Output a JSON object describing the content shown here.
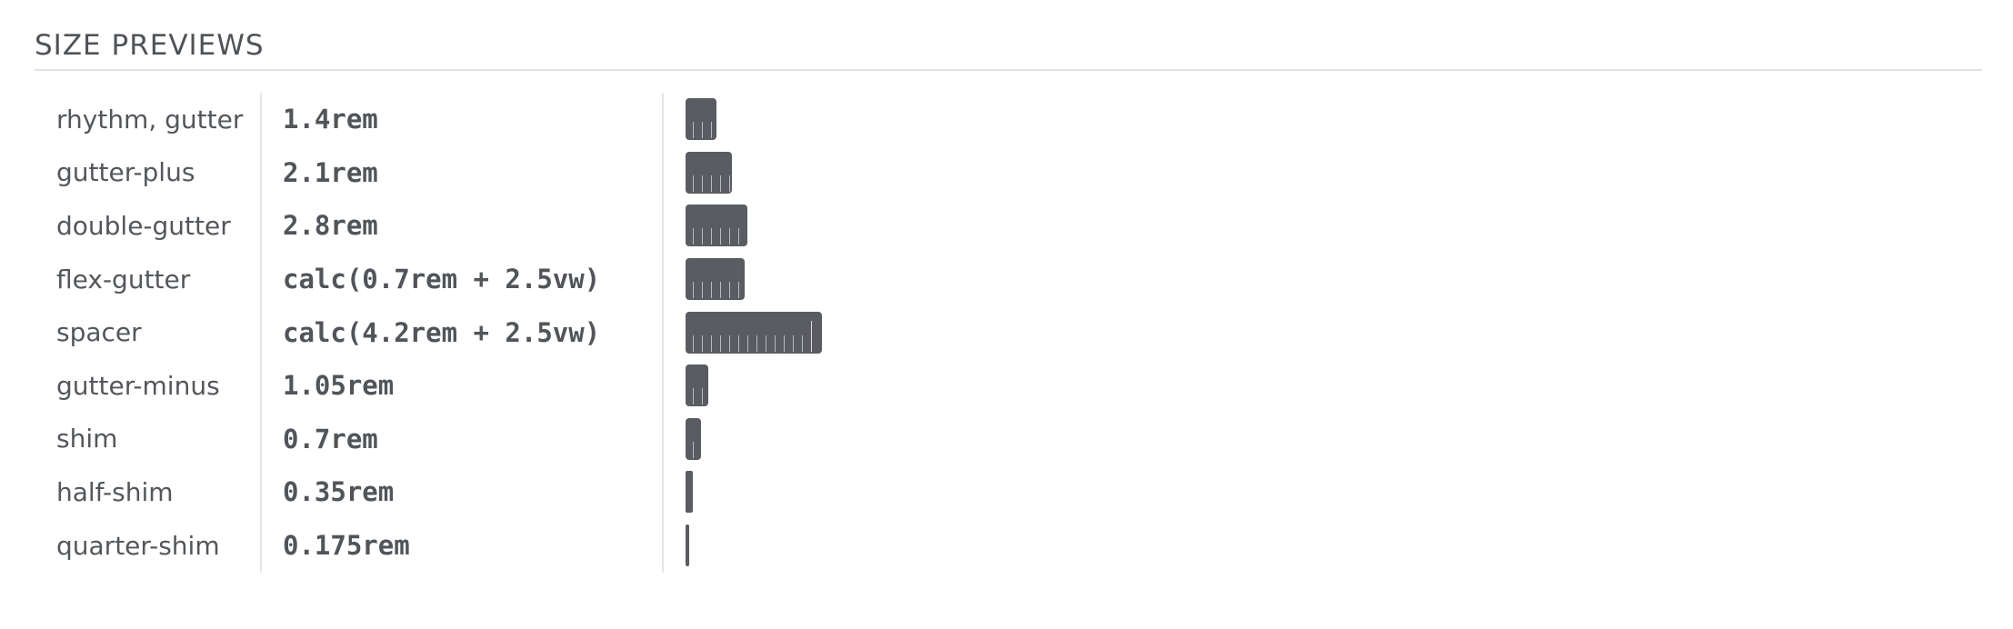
{
  "section": {
    "title": "SIZE PREVIEWS"
  },
  "rows": [
    {
      "name": "rhythm, gutter",
      "value": "1.4rem",
      "size_rem": 1.4
    },
    {
      "name": "gutter-plus",
      "value": "2.1rem",
      "size_rem": 2.1
    },
    {
      "name": "double-gutter",
      "value": "2.8rem",
      "size_rem": 2.8
    },
    {
      "name": "flex-gutter",
      "value": "calc(0.7rem + 2.5vw)",
      "size_rem": 2.7
    },
    {
      "name": "spacer",
      "value": "calc(4.2rem + 2.5vw)",
      "size_rem": 6.2
    },
    {
      "name": "gutter-minus",
      "value": "1.05rem",
      "size_rem": 1.05
    },
    {
      "name": "shim",
      "value": "0.7rem",
      "size_rem": 0.7
    },
    {
      "name": "half-shim",
      "value": "0.35rem",
      "size_rem": 0.35
    },
    {
      "name": "quarter-shim",
      "value": "0.175rem",
      "size_rem": 0.175
    }
  ],
  "colors": {
    "bar": "#595c60",
    "text": "#53575b",
    "divider": "#e6e6e6"
  }
}
